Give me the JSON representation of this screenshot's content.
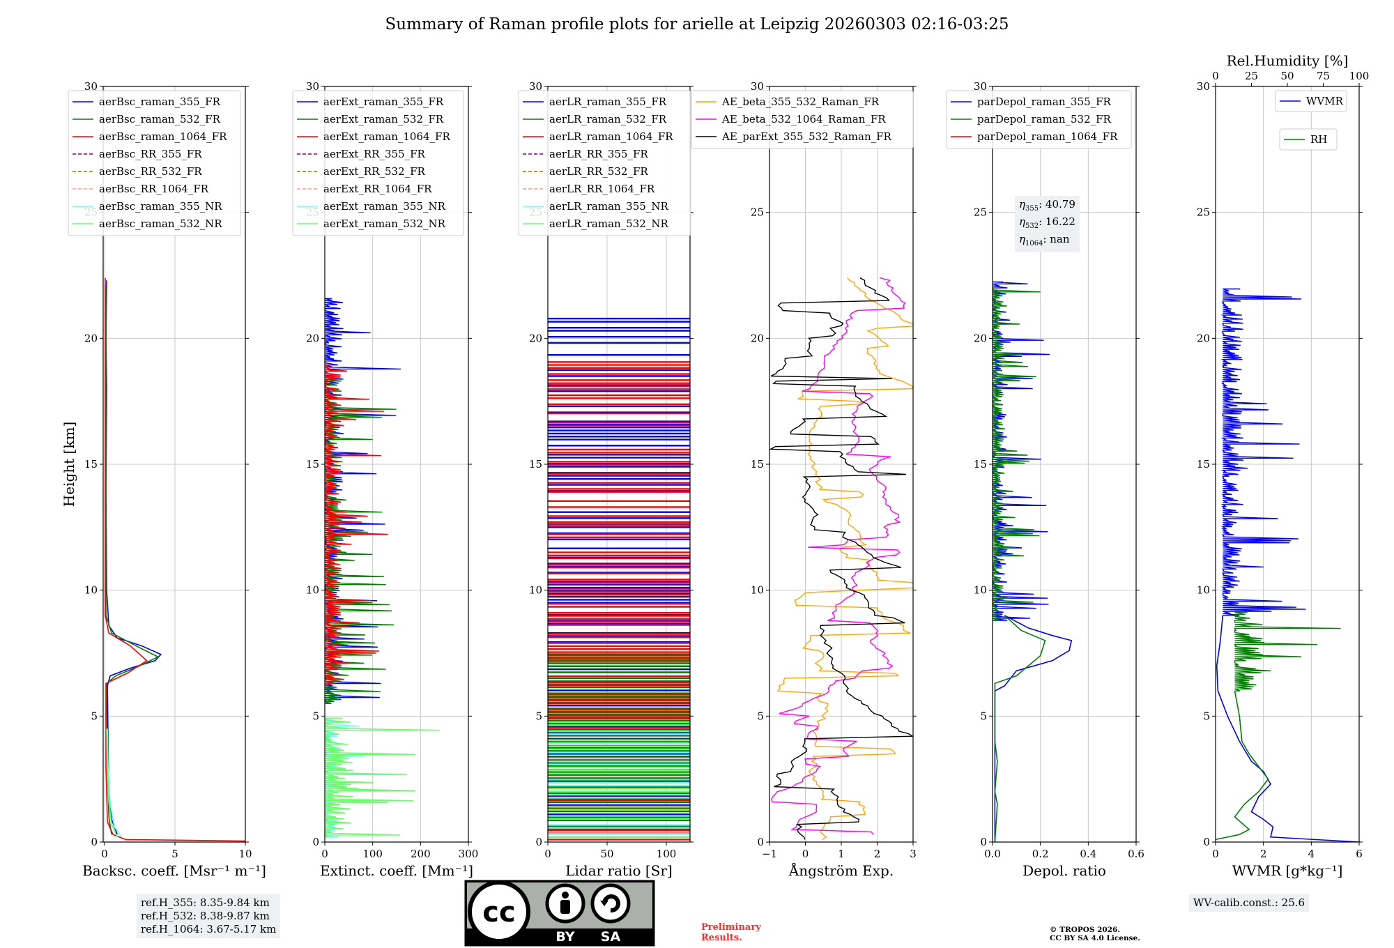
{
  "title": "Summary of Raman profile plots for arielle at Leipzig 20260303 02:16-03:25",
  "info": {
    "ref_heights": [
      "ref.H_355: 8.35-9.84 km",
      "ref.H_532: 8.38-9.87 km",
      "ref.H_1064: 3.67-5.17 km"
    ],
    "depol_eta": [
      {
        "sym": "η",
        "sub": "355",
        "value": ": 40.79"
      },
      {
        "sym": "η",
        "sub": "532",
        "value": ": 16.22"
      },
      {
        "sym": "η",
        "sub": "1064",
        "value": ": nan"
      }
    ],
    "wv_calib": "WV-calib.const.: 25.6",
    "preliminary": [
      "Preliminary",
      "Results."
    ],
    "copyright": [
      "© TROPOS 2026.",
      "CC BY SA 4.0 License."
    ],
    "license_badge": {
      "text1": "BY",
      "text2": "SA",
      "icon": "cc-by-sa-license-icon"
    }
  },
  "colors": {
    "blue": "#0000ff",
    "green": "#008000",
    "red": "#ff0000",
    "purple": "#800080",
    "olive": "#808000",
    "pink": "#ff9999",
    "cyan": "#66ffff",
    "lightgreen": "#66ff66",
    "orange": "#ffa500",
    "magenta": "#ff00ff",
    "black": "#000000",
    "grid": "#c8c8c8"
  },
  "chart_data": [
    {
      "type": "line",
      "title": "",
      "xlabel": "Backsc. coeff. [Msr⁻¹ m⁻¹]",
      "ylabel": "Height [km]",
      "xlim": [
        -0.1,
        10
      ],
      "ylim": [
        0,
        30
      ],
      "xticks": [
        0,
        5,
        10
      ],
      "xticklabels": [
        "0",
        "5",
        "10"
      ],
      "yticks": [
        0,
        5,
        10,
        15,
        20,
        25,
        30
      ],
      "yticklabels": [
        "0",
        "5",
        "10",
        "15",
        "20",
        "25",
        "30"
      ],
      "grid": true,
      "legend_position": "top-left",
      "series": [
        {
          "name": "aerBsc_raman_355_FR",
          "color": "blue",
          "style": "solid",
          "points": [
            [
              0.9,
              0.3
            ],
            [
              0.5,
              0.9
            ],
            [
              0.3,
              2
            ],
            [
              0.25,
              4
            ],
            [
              0.2,
              6.2
            ],
            [
              0.4,
              6.6
            ],
            [
              1.8,
              6.9
            ],
            [
              3.6,
              7.2
            ],
            [
              4.0,
              7.45
            ],
            [
              2.6,
              7.8
            ],
            [
              0.9,
              8.1
            ],
            [
              0.3,
              8.6
            ],
            [
              0.15,
              10
            ],
            [
              0.1,
              14
            ],
            [
              0.15,
              18
            ],
            [
              0.1,
              20
            ],
            [
              0.15,
              22.3
            ]
          ]
        },
        {
          "name": "aerBsc_raman_532_FR",
          "color": "green",
          "style": "solid",
          "points": [
            [
              0.5,
              0.3
            ],
            [
              0.3,
              1
            ],
            [
              0.2,
              3
            ],
            [
              0.15,
              6.3
            ],
            [
              0.8,
              6.6
            ],
            [
              2.5,
              7.0
            ],
            [
              3.8,
              7.35
            ],
            [
              2.2,
              7.8
            ],
            [
              0.5,
              8.3
            ],
            [
              0.1,
              9
            ],
            [
              0.1,
              22.1
            ]
          ]
        },
        {
          "name": "aerBsc_raman_1064_FR",
          "color": "red",
          "style": "solid",
          "points": [
            [
              10,
              0.04
            ],
            [
              1.5,
              0.1
            ],
            [
              0.6,
              0.3
            ],
            [
              0.2,
              0.8
            ],
            [
              0.1,
              3
            ],
            [
              0.1,
              6.3
            ],
            [
              1.6,
              6.7
            ],
            [
              3.0,
              7.2
            ],
            [
              1.8,
              7.8
            ],
            [
              0.3,
              8.3
            ],
            [
              0.05,
              9
            ],
            [
              0.05,
              22.4
            ]
          ]
        },
        {
          "name": "aerBsc_RR_355_FR",
          "color": "purple",
          "style": "dashed",
          "points": []
        },
        {
          "name": "aerBsc_RR_532_FR",
          "color": "olive",
          "style": "dashed",
          "points": []
        },
        {
          "name": "aerBsc_RR_1064_FR",
          "color": "pink",
          "style": "dashed",
          "points": []
        },
        {
          "name": "aerBsc_raman_355_NR",
          "color": "cyan",
          "style": "solid",
          "points": [
            [
              1.2,
              0.2
            ],
            [
              0.7,
              0.6
            ],
            [
              0.4,
              1.5
            ],
            [
              0.25,
              3
            ],
            [
              0.2,
              4.5
            ]
          ]
        },
        {
          "name": "aerBsc_raman_532_NR",
          "color": "lightgreen",
          "style": "solid",
          "points": [
            [
              0.9,
              0.2
            ],
            [
              0.5,
              0.7
            ],
            [
              0.3,
              1.6
            ],
            [
              0.2,
              3
            ],
            [
              0.15,
              4.5
            ]
          ]
        }
      ]
    },
    {
      "type": "line",
      "xlabel": "Extinct. coeff. [Mm⁻¹]",
      "xlim": [
        0,
        300
      ],
      "ylim": [
        0,
        30
      ],
      "xticks": [
        0,
        100,
        200,
        300
      ],
      "xticklabels": [
        "0",
        "100",
        "200",
        "300"
      ],
      "yticks": [
        0,
        5,
        10,
        15,
        20,
        25,
        30
      ],
      "yticklabels": [
        "0",
        "5",
        "10",
        "15",
        "20",
        "25",
        "30"
      ],
      "grid": true,
      "legend_position": "top-left",
      "series": [
        {
          "name": "aerExt_raman_355_FR",
          "color": "blue",
          "style": "solid",
          "noisy": {
            "range": [
              5.5,
              21.6
            ],
            "scale": 160,
            "seed": 11
          }
        },
        {
          "name": "aerExt_raman_532_FR",
          "color": "green",
          "style": "solid",
          "noisy": {
            "range": [
              5.5,
              18.5
            ],
            "scale": 150,
            "seed": 23
          }
        },
        {
          "name": "aerExt_raman_1064_FR",
          "color": "red",
          "style": "solid",
          "noisy": {
            "range": [
              6.3,
              19.0
            ],
            "scale": 140,
            "seed": 37
          }
        },
        {
          "name": "aerExt_RR_355_FR",
          "color": "purple",
          "style": "dashed"
        },
        {
          "name": "aerExt_RR_532_FR",
          "color": "olive",
          "style": "dashed"
        },
        {
          "name": "aerExt_RR_1064_FR",
          "color": "pink",
          "style": "dashed"
        },
        {
          "name": "aerExt_raman_355_NR",
          "color": "cyan",
          "style": "solid",
          "noisy": {
            "range": [
              0.2,
              5.0
            ],
            "scale": 110,
            "seed": 41
          }
        },
        {
          "name": "aerExt_raman_532_NR",
          "color": "lightgreen",
          "style": "solid",
          "noisy": {
            "range": [
              0.2,
              5.0
            ],
            "scale": 250,
            "seed": 53
          }
        }
      ]
    },
    {
      "type": "line",
      "xlabel": "Lidar ratio [Sr]",
      "xlim": [
        0,
        120
      ],
      "ylim": [
        0,
        30
      ],
      "xticks": [
        0,
        50,
        100
      ],
      "xticklabels": [
        "0",
        "50",
        "100"
      ],
      "yticks": [
        0,
        5,
        10,
        15,
        20,
        25,
        30
      ],
      "yticklabels": [
        "0",
        "5",
        "10",
        "15",
        "20",
        "25",
        "30"
      ],
      "grid": true,
      "legend_position": "top-left",
      "series": [
        {
          "name": "aerLR_raman_355_FR",
          "color": "blue",
          "style": "solid",
          "bands": {
            "range": [
              0.5,
              21.0
            ],
            "seed": 61
          }
        },
        {
          "name": "aerLR_raman_532_FR",
          "color": "green",
          "style": "solid",
          "bands": {
            "range": [
              0.5,
              7.5
            ],
            "seed": 67
          }
        },
        {
          "name": "aerLR_raman_1064_FR",
          "color": "red",
          "style": "solid",
          "bands": {
            "range": [
              0.1,
              19.4
            ],
            "seed": 71
          }
        },
        {
          "name": "aerLR_RR_355_FR",
          "color": "purple",
          "style": "dashed"
        },
        {
          "name": "aerLR_RR_532_FR",
          "color": "olive",
          "style": "dashed"
        },
        {
          "name": "aerLR_RR_1064_FR",
          "color": "pink",
          "style": "dashed"
        },
        {
          "name": "aerLR_raman_355_NR",
          "color": "cyan",
          "style": "solid",
          "bands": {
            "range": [
              0.2,
              4.5
            ],
            "seed": 79
          }
        },
        {
          "name": "aerLR_raman_532_NR",
          "color": "lightgreen",
          "style": "solid",
          "bands": {
            "range": [
              0.2,
              4.8
            ],
            "seed": 83
          }
        }
      ]
    },
    {
      "type": "line",
      "xlabel": "Ångström Exp.",
      "xlim": [
        -1,
        3
      ],
      "ylim": [
        0,
        30
      ],
      "xticks": [
        -1,
        0,
        1,
        2,
        3
      ],
      "xticklabels": [
        "−1",
        "0",
        "1",
        "2",
        "3"
      ],
      "yticks": [
        0,
        5,
        10,
        15,
        20,
        25,
        30
      ],
      "yticklabels": [
        "0",
        "5",
        "10",
        "15",
        "20",
        "25",
        "30"
      ],
      "grid": true,
      "legend_position": "top-center",
      "series": [
        {
          "name": "AE_beta_355_532_Raman_FR",
          "color": "orange",
          "style": "solid",
          "ae": {
            "range": [
              0.1,
              22.5
            ],
            "center": 0.5,
            "seed": 89
          }
        },
        {
          "name": "AE_beta_532_1064_Raman_FR",
          "color": "magenta",
          "style": "solid",
          "ae": {
            "range": [
              0.3,
              22.5
            ],
            "center": 2.0,
            "seed": 97
          }
        },
        {
          "name": "AE_parExt_355_532_Raman_FR",
          "color": "black",
          "style": "solid",
          "ae": {
            "range": [
              0.1,
              22.5
            ],
            "center": 0.0,
            "seed": 101
          }
        }
      ]
    },
    {
      "type": "line",
      "xlabel": "Depol. ratio",
      "xlim": [
        0,
        0.6
      ],
      "ylim": [
        0,
        30
      ],
      "xticks": [
        0,
        0.2,
        0.4,
        0.6
      ],
      "xticklabels": [
        "0.0",
        "0.2",
        "0.4",
        "0.6"
      ],
      "yticks": [
        0,
        5,
        10,
        15,
        20,
        25,
        30
      ],
      "yticklabels": [
        "0",
        "5",
        "10",
        "15",
        "20",
        "25",
        "30"
      ],
      "grid": true,
      "legend_position": "top-left",
      "series": [
        {
          "name": "parDepol_raman_355_FR",
          "color": "blue",
          "style": "solid",
          "points": [
            [
              0.01,
              0
            ],
            [
              0.01,
              6.0
            ],
            [
              0.05,
              6.2
            ],
            [
              0.1,
              6.8
            ],
            [
              0.25,
              7.2
            ],
            [
              0.32,
              7.6
            ],
            [
              0.33,
              8.0
            ],
            [
              0.25,
              8.2
            ],
            [
              0.15,
              8.5
            ],
            [
              0.05,
              9.0
            ]
          ],
          "noisy": {
            "range": [
              8.8,
              22.3
            ],
            "scale": 0.25,
            "seed": 107
          }
        },
        {
          "name": "parDepol_raman_532_FR",
          "color": "green",
          "style": "solid",
          "points": [
            [
              0.01,
              0
            ],
            [
              0.02,
              1.5
            ],
            [
              0.01,
              2
            ],
            [
              0.02,
              3.2
            ],
            [
              0.01,
              4
            ],
            [
              0.01,
              6.3
            ],
            [
              0.1,
              6.6
            ],
            [
              0.2,
              7.4
            ],
            [
              0.22,
              8.0
            ],
            [
              0.12,
              8.4
            ],
            [
              0.05,
              9
            ]
          ],
          "noisy": {
            "range": [
              8.8,
              22.0
            ],
            "scale": 0.2,
            "seed": 113
          }
        },
        {
          "name": "parDepol_raman_1064_FR",
          "color": "red",
          "style": "solid",
          "points": []
        }
      ]
    },
    {
      "type": "line",
      "xlabel": "WVMR [g*kg⁻¹]",
      "xlim": [
        0,
        6
      ],
      "ylim": [
        0,
        30
      ],
      "xticks": [
        0,
        2,
        4,
        6
      ],
      "xticklabels": [
        "0",
        "2",
        "4",
        "6"
      ],
      "top_axis": {
        "label": "Rel.Humidity [%]",
        "xlim": [
          0,
          100
        ],
        "xticks": [
          0,
          25,
          50,
          75,
          100
        ],
        "xticklabels": [
          "0",
          "25",
          "50",
          "75",
          "100"
        ]
      },
      "yticks": [
        0,
        5,
        10,
        15,
        20,
        25,
        30
      ],
      "yticklabels": [
        "0",
        "5",
        "10",
        "15",
        "20",
        "25",
        "30"
      ],
      "grid": true,
      "legend_position": "top-right",
      "series": [
        {
          "name": "WVMR",
          "color": "blue",
          "style": "solid",
          "points": [
            [
              6,
              0
            ],
            [
              2.3,
              0.2
            ],
            [
              2.4,
              0.6
            ],
            [
              2.0,
              0.9
            ],
            [
              1.5,
              1.2
            ],
            [
              1.8,
              1.8
            ],
            [
              2.3,
              2.3
            ],
            [
              2.0,
              2.8
            ],
            [
              1.5,
              3.2
            ],
            [
              1.0,
              4.0
            ],
            [
              0.5,
              5
            ],
            [
              0.1,
              6
            ],
            [
              0.05,
              7
            ],
            [
              0.2,
              8
            ],
            [
              0.3,
              9
            ]
          ],
          "noisy": {
            "range": [
              9,
              22
            ],
            "scale": 3.5,
            "seed": 127,
            "base": 0.3
          }
        },
        {
          "name": "RH",
          "color": "green",
          "style": "solid",
          "points": [
            [
              0,
              0.1
            ],
            [
              1.0,
              0.3
            ],
            [
              1.4,
              0.5
            ],
            [
              0.8,
              1.0
            ],
            [
              1.2,
              1.5
            ],
            [
              1.8,
              2
            ],
            [
              2.2,
              2.5
            ],
            [
              1.8,
              3
            ],
            [
              1.4,
              3.5
            ],
            [
              1.1,
              4
            ],
            [
              1.0,
              5
            ],
            [
              0.8,
              6
            ]
          ],
          "noisy": {
            "range": [
              6,
              9.2
            ],
            "scale": 5.5,
            "seed": 131,
            "base": 0.8
          }
        }
      ]
    }
  ]
}
